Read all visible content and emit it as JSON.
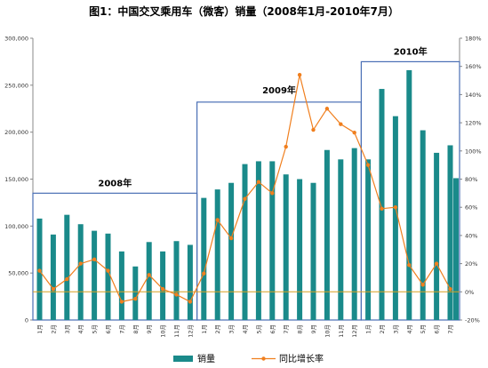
{
  "chart_data": {
    "type": "bar",
    "title": "图1：中国交叉乘用车（微客）销量（2008年1月-2010年7月）",
    "categories": [
      "1月",
      "2月",
      "3月",
      "4月",
      "5月",
      "6月",
      "7月",
      "8月",
      "9月",
      "10月",
      "11月",
      "12月",
      "1月",
      "2月",
      "3月",
      "4月",
      "5月",
      "6月",
      "7月",
      "8月",
      "9月",
      "10月",
      "11月",
      "12月",
      "1月",
      "2月",
      "3月",
      "4月",
      "5月",
      "6月",
      "7月"
    ],
    "year_groups": [
      {
        "label": "2008年",
        "start": 0,
        "end": 11
      },
      {
        "label": "2009年",
        "start": 12,
        "end": 23
      },
      {
        "label": "2010年",
        "start": 24,
        "end": 30
      }
    ],
    "series": [
      {
        "name": "销量",
        "type": "bar",
        "axis": "left",
        "color": "#1a8a8a",
        "values": [
          108000,
          91000,
          112000,
          102000,
          95000,
          92000,
          73000,
          57000,
          83000,
          73000,
          84000,
          80000,
          130000,
          139000,
          146000,
          166000,
          169000,
          169000,
          155000,
          150000,
          146000,
          181000,
          171000,
          183000,
          171000,
          246000,
          217000,
          266000,
          202000,
          178000,
          186000
        ]
      },
      {
        "name": "同比增长率",
        "type": "line",
        "axis": "right",
        "color": "#f07f1e",
        "values": [
          15,
          2,
          9,
          20,
          23,
          15,
          -7,
          -5,
          12,
          2,
          -2,
          -7,
          13,
          51,
          38,
          66,
          78,
          70,
          103,
          154,
          115,
          130,
          119,
          113,
          90,
          59,
          60,
          19,
          5,
          20,
          2
        ]
      }
    ],
    "extra_bar": {
      "value": 151000
    },
    "y_left": {
      "min": 0,
      "max": 300000,
      "step": 50000,
      "ticks": [
        "0",
        "50,000",
        "100,000",
        "150,000",
        "200,000",
        "250,000",
        "300,000"
      ]
    },
    "y_right": {
      "min": -20,
      "max": 180,
      "step": 20,
      "ticks": [
        "-20%",
        "0%",
        "20%",
        "40%",
        "60%",
        "80%",
        "100%",
        "120%",
        "140%",
        "160%",
        "180%"
      ]
    },
    "reference_line_right": 0,
    "legend": {
      "position": "bottom",
      "items": [
        "销量",
        "同比增长率"
      ]
    },
    "colors": {
      "bar": "#1a8a8a",
      "line": "#f07f1e",
      "box": "#4a6fb5",
      "zero_line": "#d8a020"
    }
  }
}
